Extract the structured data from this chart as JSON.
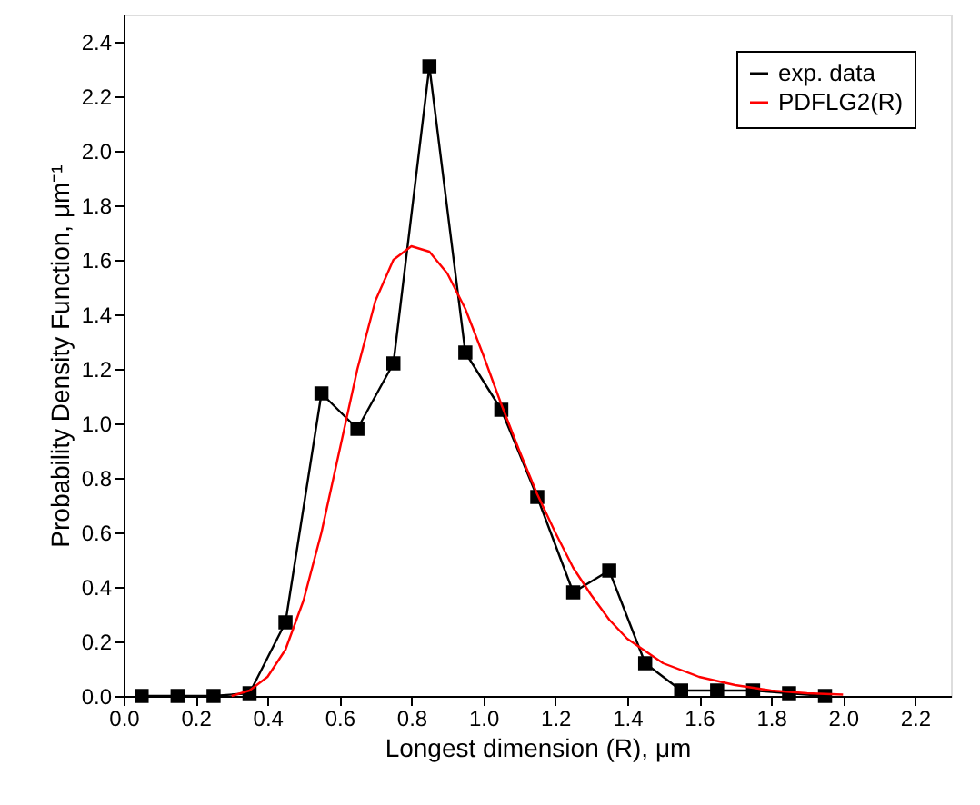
{
  "chart_data": {
    "type": "line",
    "xlabel": "Longest dimension (R), μm",
    "ylabel": "Probability Density Function, μm⁻¹",
    "xlim": [
      0,
      2.3
    ],
    "ylim": [
      0,
      2.5
    ],
    "xticks": [
      {
        "value": 0,
        "label": "0.0"
      },
      {
        "value": 0.2,
        "label": "0.2"
      },
      {
        "value": 0.4,
        "label": "0.4"
      },
      {
        "value": 0.6,
        "label": "0.6"
      },
      {
        "value": 0.8,
        "label": "0.8"
      },
      {
        "value": 1,
        "label": "1.0"
      },
      {
        "value": 1.2,
        "label": "1.2"
      },
      {
        "value": 1.4,
        "label": "1.4"
      },
      {
        "value": 1.6,
        "label": "1.6"
      },
      {
        "value": 1.8,
        "label": "1.8"
      },
      {
        "value": 2,
        "label": "2.0"
      },
      {
        "value": 2.2,
        "label": "2.2"
      }
    ],
    "yticks": [
      {
        "value": 0,
        "label": "0.0"
      },
      {
        "value": 0.2,
        "label": "0.2"
      },
      {
        "value": 0.4,
        "label": "0.4"
      },
      {
        "value": 0.6,
        "label": "0.6"
      },
      {
        "value": 0.8,
        "label": "0.8"
      },
      {
        "value": 1,
        "label": "1.0"
      },
      {
        "value": 1.2,
        "label": "1.2"
      },
      {
        "value": 1.4,
        "label": "1.4"
      },
      {
        "value": 1.6,
        "label": "1.6"
      },
      {
        "value": 1.8,
        "label": "1.8"
      },
      {
        "value": 2,
        "label": "2.0"
      },
      {
        "value": 2.2,
        "label": "2.2"
      },
      {
        "value": 2.4,
        "label": "2.4"
      }
    ],
    "grid": false,
    "legend": "top right",
    "series": [
      {
        "name": "exp. data",
        "color": "#000000",
        "marker": "square",
        "x": [
          0.05,
          0.15,
          0.25,
          0.35,
          0.45,
          0.55,
          0.65,
          0.75,
          0.85,
          0.95,
          1.05,
          1.15,
          1.25,
          1.35,
          1.45,
          1.55,
          1.65,
          1.75,
          1.85,
          1.95
        ],
        "values": [
          0,
          0,
          0,
          0.01,
          0.27,
          1.11,
          0.98,
          1.22,
          2.31,
          1.26,
          1.05,
          0.73,
          0.38,
          0.46,
          0.12,
          0.02,
          0.02,
          0.02,
          0.01,
          0
        ]
      },
      {
        "name": "PDFLG2(R)",
        "color": "#ff0000",
        "marker": "none",
        "x": [
          0.3,
          0.35,
          0.4,
          0.45,
          0.5,
          0.55,
          0.6,
          0.65,
          0.7,
          0.75,
          0.8,
          0.85,
          0.9,
          0.95,
          1.0,
          1.05,
          1.1,
          1.15,
          1.2,
          1.25,
          1.3,
          1.35,
          1.4,
          1.5,
          1.6,
          1.7,
          1.8,
          1.9,
          2.0
        ],
        "values": [
          0,
          0.02,
          0.07,
          0.17,
          0.35,
          0.6,
          0.9,
          1.2,
          1.45,
          1.6,
          1.65,
          1.63,
          1.55,
          1.42,
          1.25,
          1.07,
          0.9,
          0.74,
          0.6,
          0.47,
          0.37,
          0.28,
          0.21,
          0.12,
          0.07,
          0.04,
          0.02,
          0.01,
          0.005
        ]
      }
    ]
  }
}
